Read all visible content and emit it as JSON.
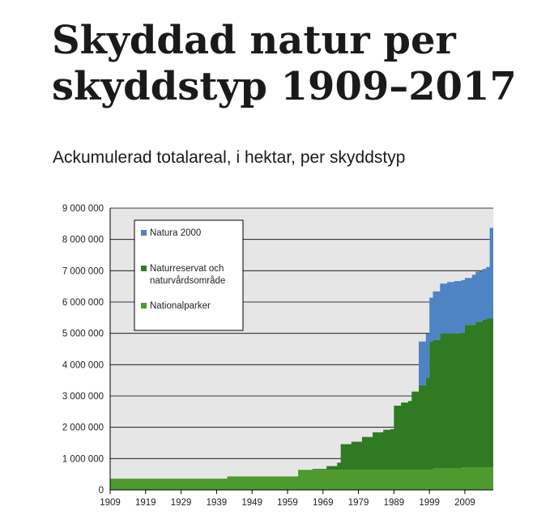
{
  "chart_data": {
    "type": "area",
    "stacked": true,
    "title": "Skyddad natur per skyddstyp 1909–2017",
    "subtitle": "Ackumulerad totalareal, i hektar, per skyddstyp",
    "xlim": [
      1909,
      2017
    ],
    "ylim": [
      0,
      9000000
    ],
    "x_ticks": [
      1909,
      1919,
      1929,
      1939,
      1949,
      1959,
      1969,
      1979,
      1989,
      1999,
      2009
    ],
    "y_ticks": [
      0,
      1000000,
      2000000,
      3000000,
      4000000,
      5000000,
      6000000,
      7000000,
      8000000,
      9000000
    ],
    "y_tick_labels": [
      "0",
      "1 000 000",
      "2 000 000",
      "3 000 000",
      "4 000 000",
      "5 000 000",
      "6 000 000",
      "7 000 000",
      "8 000 000",
      "9 000 000"
    ],
    "grid": true,
    "legend_position": "top-left",
    "series": [
      {
        "name": "Nationalparker",
        "color": "#4e9a2e",
        "points": [
          [
            1909,
            360000
          ],
          [
            1941,
            360000
          ],
          [
            1942,
            430000
          ],
          [
            1961,
            430000
          ],
          [
            1962,
            640000
          ],
          [
            1996,
            640000
          ],
          [
            2000,
            690000
          ],
          [
            2008,
            720000
          ],
          [
            2017,
            730000
          ]
        ]
      },
      {
        "name": "Naturreservat och naturvårdsområde",
        "color": "#2f7a22",
        "points": [
          [
            1909,
            0
          ],
          [
            1962,
            0
          ],
          [
            1966,
            30000
          ],
          [
            1970,
            120000
          ],
          [
            1973,
            230000
          ],
          [
            1974,
            820000
          ],
          [
            1977,
            900000
          ],
          [
            1980,
            1050000
          ],
          [
            1983,
            1200000
          ],
          [
            1986,
            1280000
          ],
          [
            1988,
            1300000
          ],
          [
            1989,
            2050000
          ],
          [
            1991,
            2150000
          ],
          [
            1993,
            2200000
          ],
          [
            1994,
            2500000
          ],
          [
            1996,
            2700000
          ],
          [
            1998,
            2950000
          ],
          [
            1999,
            4100000
          ],
          [
            2002,
            4300000
          ],
          [
            2005,
            4300000
          ],
          [
            2009,
            4550000
          ],
          [
            2012,
            4650000
          ],
          [
            2014,
            4720000
          ],
          [
            2015,
            4750000
          ],
          [
            2017,
            4830000
          ]
        ]
      },
      {
        "name": "Natura 2000",
        "color": "#4f84c4",
        "points": [
          [
            1909,
            0
          ],
          [
            1995,
            0
          ],
          [
            1996,
            1400000
          ],
          [
            1999,
            1400000
          ],
          [
            2000,
            1550000
          ],
          [
            2002,
            1600000
          ],
          [
            2004,
            1650000
          ],
          [
            2006,
            1680000
          ],
          [
            2009,
            1500000
          ],
          [
            2011,
            1600000
          ],
          [
            2013,
            1620000
          ],
          [
            2015,
            1650000
          ],
          [
            2016,
            2900000
          ],
          [
            2017,
            2900000
          ]
        ]
      }
    ]
  },
  "legend": {
    "items": [
      {
        "label": "Natura 2000",
        "color": "#4f84c4"
      },
      {
        "label": "Naturreservat och naturvårdsområde",
        "lines": [
          "Naturreservat och",
          "naturvårdsområde"
        ],
        "color": "#2f7a22"
      },
      {
        "label": "Nationalparker",
        "color": "#4e9a2e"
      }
    ]
  }
}
